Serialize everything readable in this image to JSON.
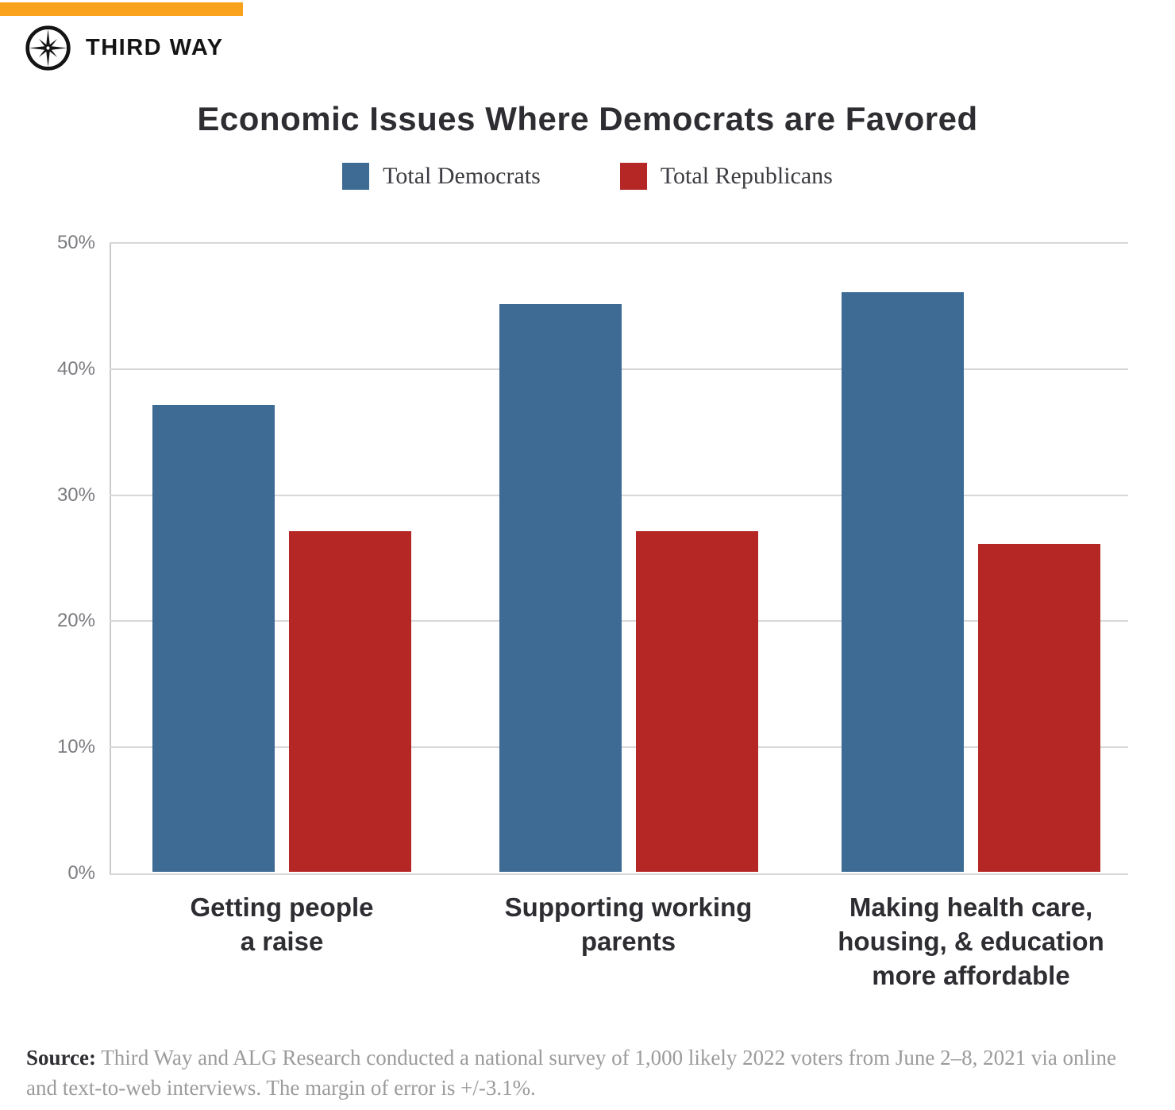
{
  "brand": {
    "name": "THIRD WAY",
    "accent_color": "#FAA21B"
  },
  "chart_data": {
    "type": "bar",
    "title": "Economic Issues Where Democrats are Favored",
    "categories": [
      "Getting people\na raise",
      "Supporting working\nparents",
      "Making health care,\nhousing, & education\nmore affordable"
    ],
    "series": [
      {
        "name": "Total Democrats",
        "color": "#3E6B94",
        "values": [
          37,
          45,
          46
        ]
      },
      {
        "name": "Total Republicans",
        "color": "#B52725",
        "values": [
          27,
          27,
          26
        ]
      }
    ],
    "ylim": [
      0,
      50
    ],
    "ytick_labels": [
      "50%",
      "40%",
      "30%",
      "20%",
      "10%",
      "0%"
    ],
    "grid": true,
    "legend_position": "top"
  },
  "source": {
    "prefix": "Source:",
    "text": " Third Way and ALG Research conducted a national survey of 1,000 likely 2022 voters from June 2–8, 2021 via online and text-to-web interviews. The margin of error is +/-3.1%."
  }
}
